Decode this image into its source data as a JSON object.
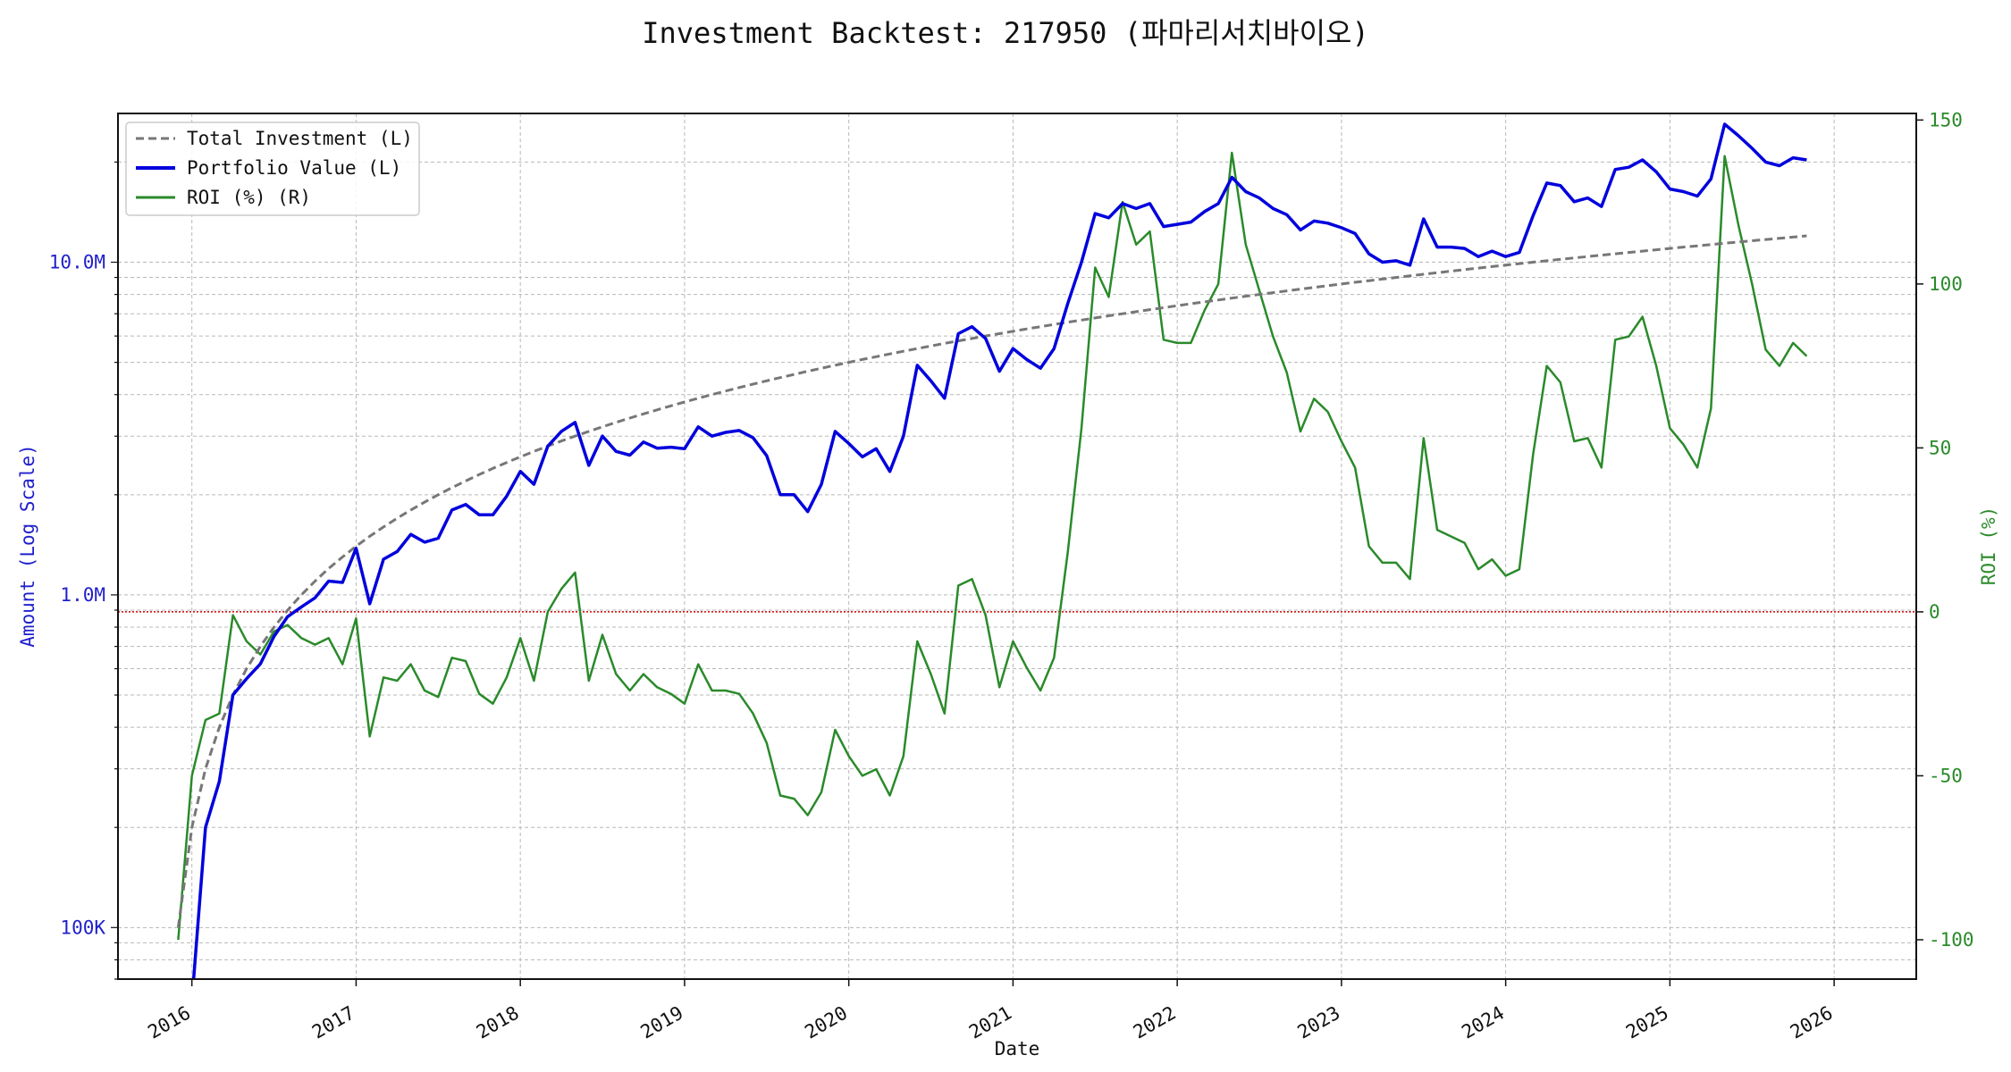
{
  "chart_data": {
    "type": "line",
    "title": "Investment Backtest: 217950 (파마리서치바이오)",
    "xlabel": "Date",
    "ylabel_left": "Amount (Log Scale)",
    "ylabel_right": "ROI (%)",
    "y_left_scale": "log",
    "y_left_ticks": [
      100000,
      1000000,
      10000000
    ],
    "y_left_tick_labels": [
      "100K",
      "1.0M",
      "10.0M"
    ],
    "y_left_range": [
      70000,
      28000000
    ],
    "y_right_ticks": [
      -100,
      -50,
      0,
      50,
      100,
      150
    ],
    "y_right_tick_labels": [
      "-100",
      "-50",
      "0",
      "50",
      "100",
      "150"
    ],
    "y_right_range": [
      -112,
      152
    ],
    "x_range": [
      2015.55,
      2026.5
    ],
    "x_tick_labels": [
      "2016",
      "2017",
      "2018",
      "2019",
      "2020",
      "2021",
      "2022",
      "2023",
      "2024",
      "2025",
      "2026"
    ],
    "grid": true,
    "legend_position": "top-left",
    "reference_line": {
      "axis": "right",
      "value": 0,
      "color": "#cc0000",
      "style": "dotted"
    },
    "x": [
      2015.917,
      2016.0,
      2016.083,
      2016.167,
      2016.25,
      2016.333,
      2016.417,
      2016.5,
      2016.583,
      2016.667,
      2016.75,
      2016.833,
      2016.917,
      2017.0,
      2017.083,
      2017.167,
      2017.25,
      2017.333,
      2017.417,
      2017.5,
      2017.583,
      2017.667,
      2017.75,
      2017.833,
      2017.917,
      2018.0,
      2018.083,
      2018.167,
      2018.25,
      2018.333,
      2018.417,
      2018.5,
      2018.583,
      2018.667,
      2018.75,
      2018.833,
      2018.917,
      2019.0,
      2019.083,
      2019.167,
      2019.25,
      2019.333,
      2019.417,
      2019.5,
      2019.583,
      2019.667,
      2019.75,
      2019.833,
      2019.917,
      2020.0,
      2020.083,
      2020.167,
      2020.25,
      2020.333,
      2020.417,
      2020.5,
      2020.583,
      2020.667,
      2020.75,
      2020.833,
      2020.917,
      2021.0,
      2021.083,
      2021.167,
      2021.25,
      2021.333,
      2021.417,
      2021.5,
      2021.583,
      2021.667,
      2021.75,
      2021.833,
      2021.917,
      2022.0,
      2022.083,
      2022.167,
      2022.25,
      2022.333,
      2022.417,
      2022.5,
      2022.583,
      2022.667,
      2022.75,
      2022.833,
      2022.917,
      2023.0,
      2023.083,
      2023.167,
      2023.25,
      2023.333,
      2023.417,
      2023.5,
      2023.583,
      2023.667,
      2023.75,
      2023.833,
      2023.917,
      2024.0,
      2024.083,
      2024.167,
      2024.25,
      2024.333,
      2024.417,
      2024.5,
      2024.583,
      2024.667,
      2024.75,
      2024.833,
      2024.917,
      2025.0,
      2025.083,
      2025.167,
      2025.25,
      2025.333,
      2025.417,
      2025.5,
      2025.583,
      2025.667,
      2025.75,
      2025.833
    ],
    "series": [
      {
        "name": "Total Investment (L)",
        "axis": "left",
        "color": "#777777",
        "style": "dashed",
        "values": [
          100000,
          200000,
          300000,
          400000,
          500000,
          600000,
          700000,
          800000,
          900000,
          1000000,
          1100000,
          1200000,
          1300000,
          1400000,
          1500000,
          1600000,
          1700000,
          1800000,
          1900000,
          2000000,
          2100000,
          2200000,
          2300000,
          2400000,
          2500000,
          2600000,
          2700000,
          2800000,
          2900000,
          3000000,
          3100000,
          3200000,
          3300000,
          3400000,
          3500000,
          3600000,
          3700000,
          3800000,
          3900000,
          4000000,
          4100000,
          4200000,
          4300000,
          4400000,
          4500000,
          4600000,
          4700000,
          4800000,
          4900000,
          5000000,
          5100000,
          5200000,
          5300000,
          5400000,
          5500000,
          5600000,
          5700000,
          5800000,
          5900000,
          6000000,
          6100000,
          6200000,
          6300000,
          6400000,
          6500000,
          6600000,
          6700000,
          6800000,
          6900000,
          7000000,
          7100000,
          7200000,
          7300000,
          7400000,
          7500000,
          7600000,
          7700000,
          7800000,
          7900000,
          8000000,
          8100000,
          8200000,
          8300000,
          8400000,
          8500000,
          8600000,
          8700000,
          8800000,
          8900000,
          9000000,
          9100000,
          9200000,
          9300000,
          9400000,
          9500000,
          9600000,
          9700000,
          9800000,
          9900000,
          10000000,
          10100000,
          10200000,
          10300000,
          10400000,
          10500000,
          10600000,
          10700000,
          10800000,
          10900000,
          11000000,
          11100000,
          11200000,
          11300000,
          11400000,
          11500000,
          11600000,
          11700000,
          11800000,
          11900000,
          12000000
        ]
      },
      {
        "name": "Portfolio Value (L)",
        "axis": "left",
        "color": "#0000dd",
        "style": "solid",
        "values": [
          null,
          60000,
          200000,
          275000,
          500000,
          560000,
          620000,
          750000,
          860000,
          920000,
          980000,
          1100000,
          1090000,
          1380000,
          940000,
          1280000,
          1350000,
          1520000,
          1440000,
          1480000,
          1800000,
          1870000,
          1740000,
          1740000,
          1980000,
          2350000,
          2150000,
          2800000,
          3100000,
          3300000,
          2450000,
          3000000,
          2700000,
          2630000,
          2880000,
          2760000,
          2780000,
          2750000,
          3200000,
          3000000,
          3080000,
          3120000,
          2970000,
          2620000,
          2000000,
          2000000,
          1780000,
          2150000,
          3100000,
          2850000,
          2600000,
          2750000,
          2350000,
          3000000,
          4900000,
          4400000,
          3900000,
          6100000,
          6400000,
          5900000,
          4700000,
          5500000,
          5100000,
          4800000,
          5500000,
          7500000,
          10000000,
          14000000,
          13600000,
          15000000,
          14500000,
          15000000,
          12800000,
          13000000,
          13200000,
          14200000,
          15000000,
          18000000,
          16300000,
          15600000,
          14500000,
          13900000,
          12500000,
          13300000,
          13100000,
          12700000,
          12200000,
          10600000,
          10000000,
          10100000,
          9800000,
          13500000,
          11100000,
          11100000,
          11000000,
          10400000,
          10800000,
          10400000,
          10700000,
          13800000,
          17300000,
          17000000,
          15200000,
          15600000,
          14700000,
          19000000,
          19300000,
          20300000,
          18700000,
          16600000,
          16300000,
          15800000,
          17800000,
          26000000,
          24000000,
          22000000,
          20000000,
          19500000,
          20600000,
          20300000
        ]
      },
      {
        "name": "ROI (%) (R)",
        "axis": "right",
        "color": "#2a8a2a",
        "style": "solid",
        "values": [
          -100,
          -50,
          -33,
          -31,
          -1,
          -9,
          -13,
          -6,
          -4,
          -8,
          -10,
          -8,
          -16,
          -2,
          -38,
          -20,
          -21,
          -16,
          -24,
          -26,
          -14,
          -15,
          -25,
          -28,
          -20,
          -8,
          -21,
          0,
          7,
          12,
          -21,
          -7,
          -19,
          -24,
          -19,
          -23,
          -25,
          -28,
          -16,
          -24,
          -24,
          -25,
          -31,
          -40,
          -56,
          -57,
          -62,
          -55,
          -36,
          -44,
          -50,
          -48,
          -56,
          -44,
          -9,
          -19,
          -31,
          8,
          10,
          -1,
          -23,
          -9,
          -17,
          -24,
          -14,
          18,
          56,
          105,
          96,
          125,
          112,
          116,
          83,
          82,
          82,
          92,
          100,
          140,
          112,
          98,
          84,
          73,
          55,
          65,
          61,
          52,
          44,
          20,
          15,
          15,
          10,
          53,
          25,
          23,
          21,
          13,
          16,
          11,
          13,
          48,
          75,
          70,
          52,
          53,
          44,
          83,
          84,
          90,
          75,
          56,
          51,
          44,
          62,
          139,
          118,
          100,
          80,
          75,
          82,
          78
        ]
      }
    ]
  }
}
